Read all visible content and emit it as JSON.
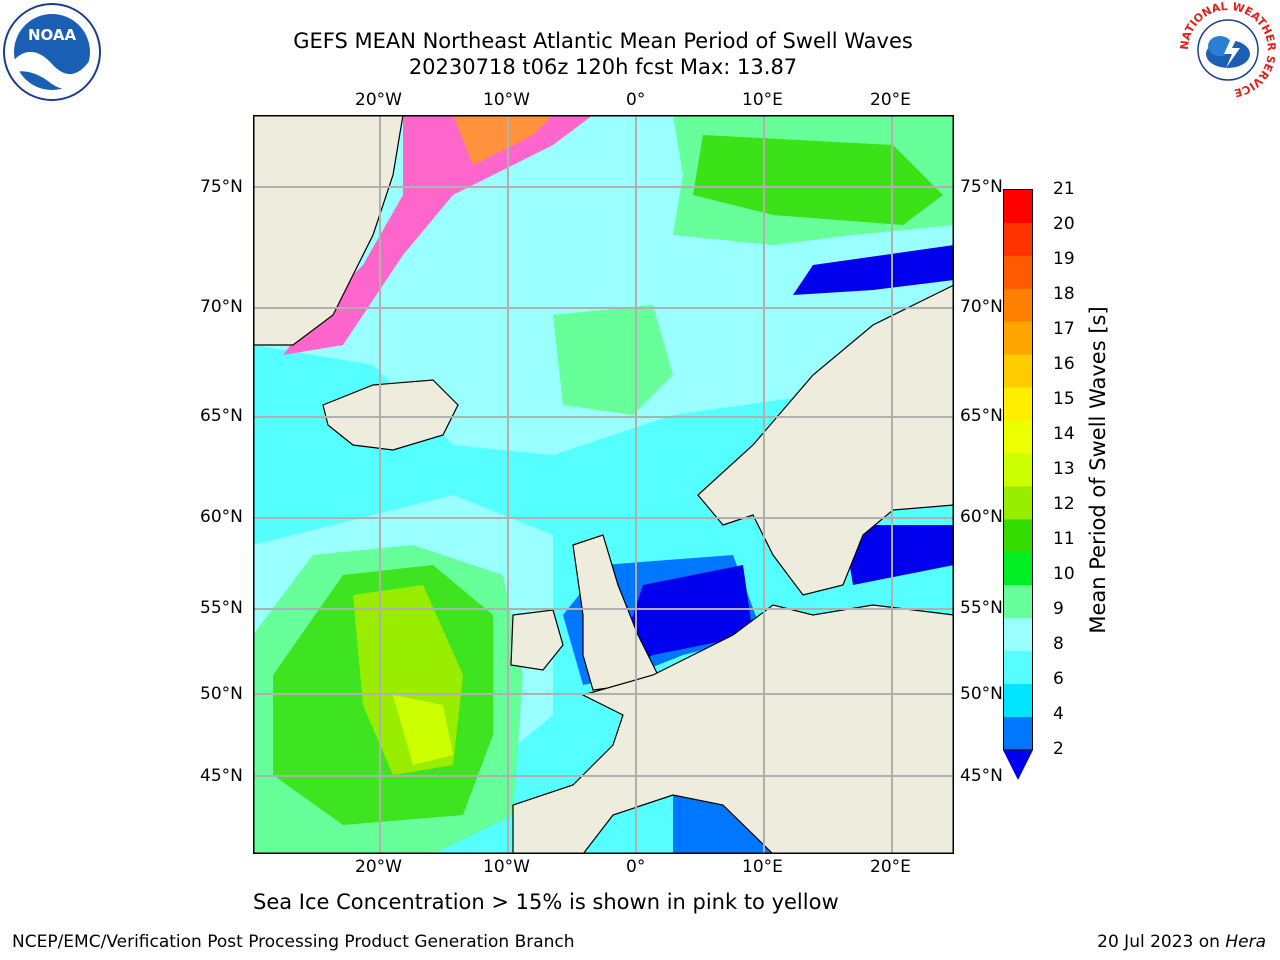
{
  "title": {
    "line1": "GEFS MEAN Northeast Atlantic Mean Period of Swell Waves",
    "line2": "20230718 t06z 120h fcst   Max: 13.87"
  },
  "map": {
    "lon_labels_top": [
      "20°W",
      "10°W",
      "0°",
      "10°E",
      "20°E"
    ],
    "lon_labels_bottom": [
      "20°W",
      "10°W",
      "0°",
      "10°E",
      "20°E"
    ],
    "lat_labels_left": [
      "75°N",
      "70°N",
      "65°N",
      "60°N",
      "55°N",
      "50°N",
      "45°N"
    ],
    "lat_labels_right": [
      "75°N",
      "70°N",
      "65°N",
      "60°N",
      "55°N",
      "50°N",
      "45°N"
    ],
    "land_color": "#eeecdc",
    "grid_color": "#b0b0b0"
  },
  "colorbar": {
    "title": "Mean Period of Swell Waves [s]",
    "ticks": [
      "21",
      "20",
      "19",
      "18",
      "17",
      "16",
      "15",
      "14",
      "13",
      "12",
      "11",
      "10",
      "9",
      "8",
      "6",
      "4",
      "2"
    ],
    "colors": [
      "#ff0000",
      "#ff3300",
      "#ff5a00",
      "#ff8000",
      "#ffa500",
      "#ffcc00",
      "#ffee00",
      "#eeff00",
      "#ccff00",
      "#99ee00",
      "#33dd00",
      "#00ee22",
      "#66ff99",
      "#99ffff",
      "#55ffff",
      "#00e5ff",
      "#0077ff"
    ],
    "extend_color": "#0000ee"
  },
  "note": "Sea Ice Concentration > 15% is shown in pink to yellow",
  "footer": {
    "left": "NCEP/EMC/Verification Post Processing Product Generation Branch",
    "date": "20 Jul 2023 on ",
    "machine": "Hera"
  },
  "logos": {
    "noaa": "NOAA",
    "nws_ring": "NATIONAL WEATHER SERVICE"
  }
}
